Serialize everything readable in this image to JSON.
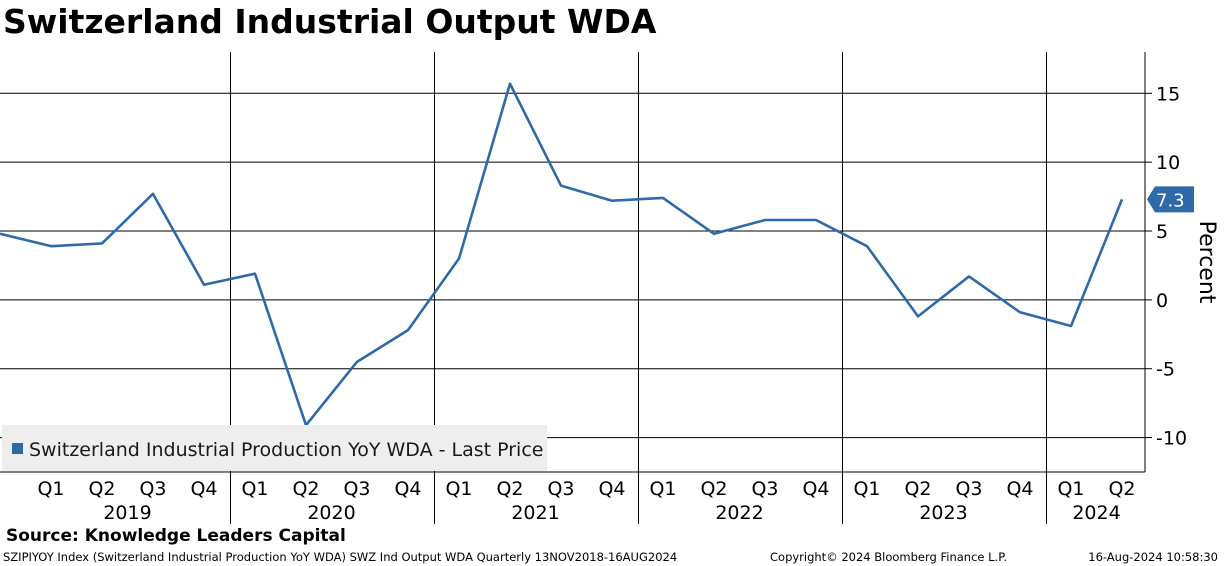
{
  "title": "Switzerland Industrial Output WDA",
  "source": "Source: Knowledge Leaders Capital",
  "footer": {
    "left": "SZIPIYOY Index (Switzerland Industrial Production YoY WDA) SWZ Ind Output WDA  Quarterly 13NOV2018-16AUG2024",
    "middle": "Copyright© 2024 Bloomberg Finance L.P.",
    "right": "16-Aug-2024 10:58:30"
  },
  "colors": {
    "series": "#2e6aa8",
    "grid": "#000000",
    "legend_bg": "#eeeeee"
  },
  "chart_data": {
    "type": "line",
    "title": "Switzerland Industrial Output WDA",
    "ylabel": "Percent",
    "xlabel": "",
    "ylim": [
      -12.5,
      18
    ],
    "yticks": [
      15,
      10,
      5,
      0,
      -5,
      -10
    ],
    "grid": true,
    "legend_position": "bottom-left",
    "quarter_labels": [
      "Q1",
      "Q2",
      "Q3",
      "Q4",
      "Q1",
      "Q2",
      "Q3",
      "Q4",
      "Q1",
      "Q2",
      "Q3",
      "Q4",
      "Q1",
      "Q2",
      "Q3",
      "Q4",
      "Q1",
      "Q2",
      "Q3",
      "Q4",
      "Q1",
      "Q2"
    ],
    "year_labels": [
      "2019",
      "2020",
      "2021",
      "2022",
      "2023",
      "2024"
    ],
    "x": [
      "2018 Q4",
      "2019 Q1",
      "2019 Q2",
      "2019 Q3",
      "2019 Q4",
      "2020 Q1",
      "2020 Q2",
      "2020 Q3",
      "2020 Q4",
      "2021 Q1",
      "2021 Q2",
      "2021 Q3",
      "2021 Q4",
      "2022 Q1",
      "2022 Q2",
      "2022 Q3",
      "2022 Q4",
      "2023 Q1",
      "2023 Q2",
      "2023 Q3",
      "2023 Q4",
      "2024 Q1",
      "2024 Q2"
    ],
    "series": [
      {
        "name": "Switzerland Industrial Production YoY WDA - Last Price",
        "values": [
          4.8,
          3.9,
          4.1,
          7.7,
          1.1,
          1.9,
          -9.1,
          -4.5,
          -2.2,
          3.0,
          15.7,
          8.3,
          7.2,
          7.4,
          4.8,
          5.8,
          5.8,
          3.9,
          -1.2,
          1.7,
          -0.9,
          -1.9,
          7.3
        ],
        "last_value_label": "7.3"
      }
    ]
  }
}
